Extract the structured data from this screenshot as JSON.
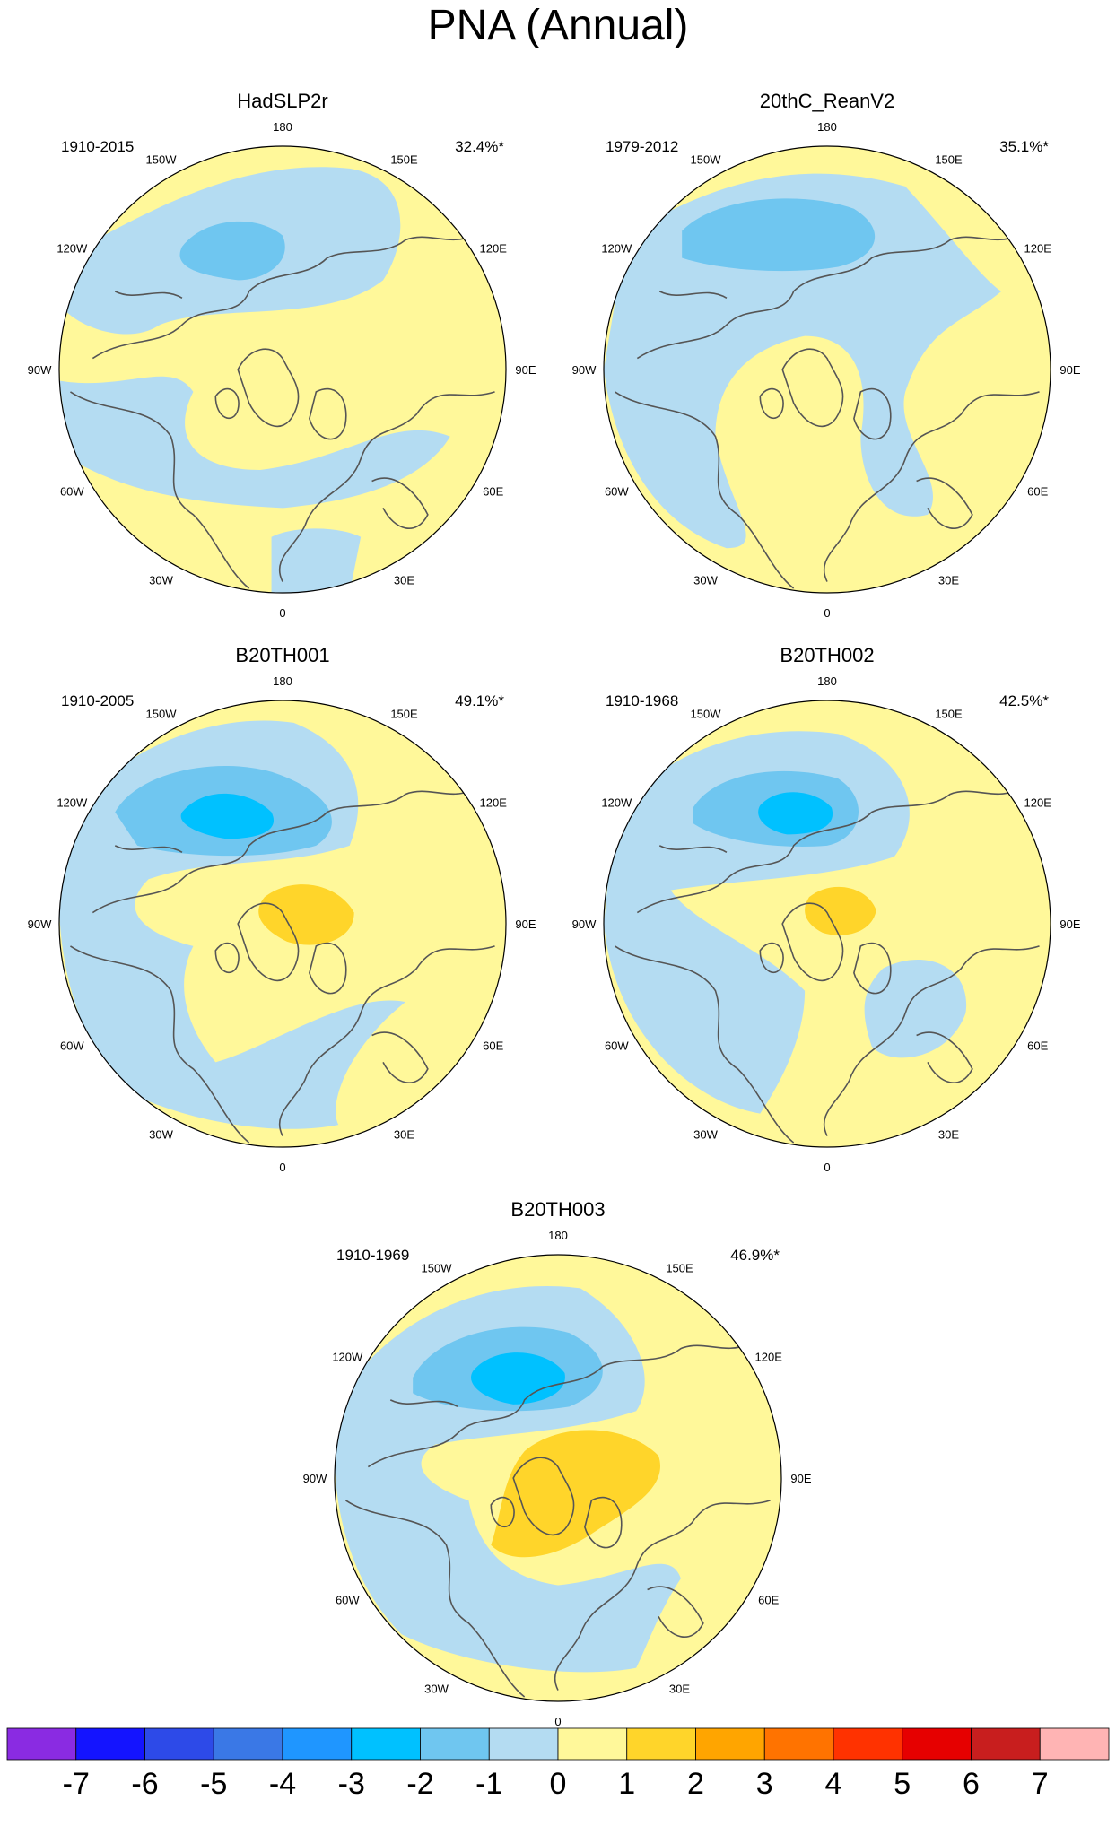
{
  "title": "PNA (Annual)",
  "lon_labels": [
    "180",
    "150E",
    "120E",
    "90E",
    "60E",
    "30E",
    "0",
    "30W",
    "60W",
    "90W",
    "120W",
    "150W"
  ],
  "panels": [
    {
      "name": "HadSLP2r",
      "period": "1910-2015",
      "variance": "32.4%*"
    },
    {
      "name": "20thC_ReanV2",
      "period": "1979-2012",
      "variance": "35.1%*"
    },
    {
      "name": "B20TH001",
      "period": "1910-2005",
      "variance": "49.1%*"
    },
    {
      "name": "B20TH002",
      "period": "1910-1968",
      "variance": "42.5%*"
    },
    {
      "name": "B20TH003",
      "period": "1910-1969",
      "variance": "46.9%*"
    }
  ],
  "colorbar": {
    "labels": [
      "-7",
      "-6",
      "-5",
      "-4",
      "-3",
      "-2",
      "-1",
      "0",
      "1",
      "2",
      "3",
      "4",
      "5",
      "6",
      "7"
    ],
    "colors": [
      "#8a2be2",
      "#1414ff",
      "#2d4ae8",
      "#3a78e6",
      "#1f96ff",
      "#00c1ff",
      "#6fc6f0",
      "#b4dcf2",
      "#fff89a",
      "#ffd52a",
      "#ffa500",
      "#ff7300",
      "#ff3200",
      "#e60000",
      "#c81e1e",
      "#ffb4b4"
    ]
  },
  "colors": {
    "neg1": "#b4dcf2",
    "neg2": "#6fc6f0",
    "neg3": "#00c1ff",
    "pos1": "#fff89a",
    "pos2": "#ffd52a",
    "coast": "#555555"
  }
}
